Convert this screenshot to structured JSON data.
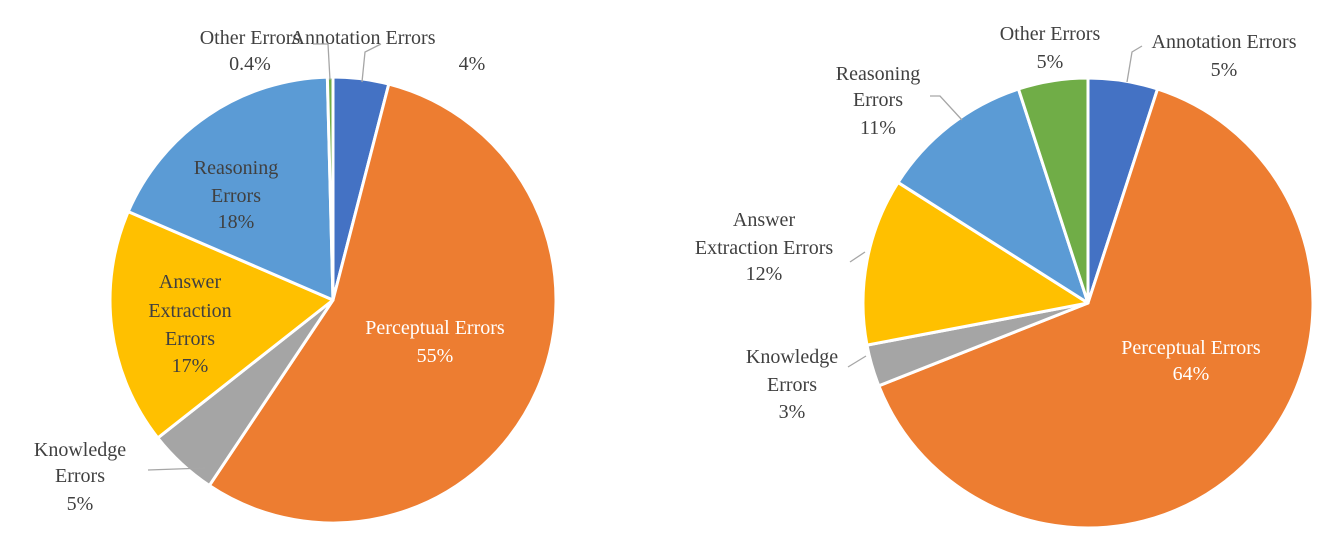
{
  "chart_data": [
    {
      "type": "pie",
      "start_angle_deg": 0,
      "direction": "clockwise",
      "slices": [
        {
          "label": "Annotation Errors",
          "value_label": "4%",
          "value": 4,
          "color": "#4472C4"
        },
        {
          "label": "Perceptual Errors",
          "value_label": "55%",
          "value": 55,
          "color": "#ED7D31"
        },
        {
          "label": "Knowledge Errors",
          "value_label": "5%",
          "value": 5,
          "color": "#A5A5A5"
        },
        {
          "label": "Answer Extraction Errors",
          "value_label": "17%",
          "value": 17,
          "color": "#FFC000"
        },
        {
          "label": "Reasoning Errors",
          "value_label": "18%",
          "value": 18,
          "color": "#5B9BD5"
        },
        {
          "label": "Other Errors",
          "value_label": "0.4%",
          "value": 0.4,
          "color": "#70AD47"
        }
      ]
    },
    {
      "type": "pie",
      "start_angle_deg": 0,
      "direction": "clockwise",
      "slices": [
        {
          "label": "Annotation Errors",
          "value_label": "5%",
          "value": 5,
          "color": "#4472C4"
        },
        {
          "label": "Perceptual Errors",
          "value_label": "64%",
          "value": 64,
          "color": "#ED7D31"
        },
        {
          "label": "Knowledge Errors",
          "value_label": "3%",
          "value": 3,
          "color": "#A5A5A5"
        },
        {
          "label": "Answer Extraction Errors",
          "value_label": "12%",
          "value": 12,
          "color": "#FFC000"
        },
        {
          "label": "Reasoning Errors",
          "value_label": "11%",
          "value": 11,
          "color": "#5B9BD5"
        },
        {
          "label": "Other Errors",
          "value_label": "5%",
          "value": 5,
          "color": "#70AD47"
        }
      ]
    }
  ]
}
